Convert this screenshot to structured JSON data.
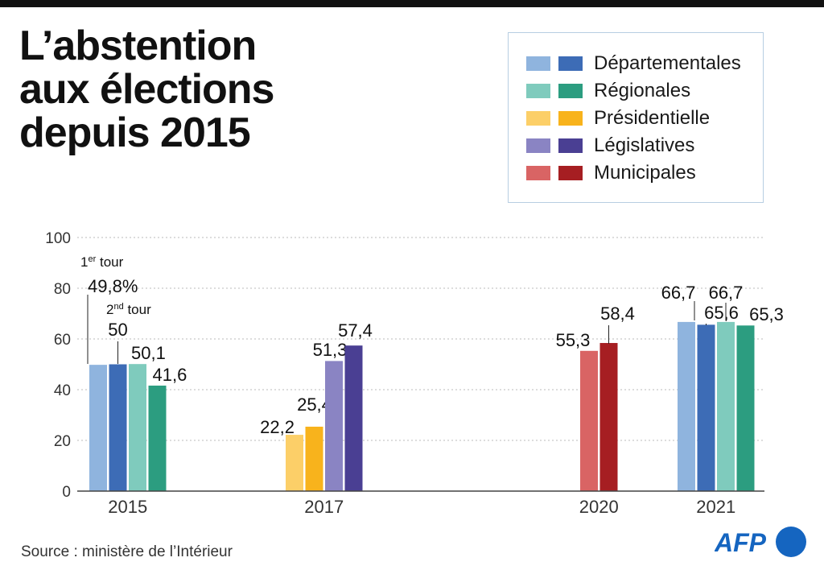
{
  "title_lines": [
    "L’abstention",
    "aux élections",
    "depuis 2015"
  ],
  "source": "Source : ministère de l’Intérieur",
  "logo_text": "AFP",
  "colors": {
    "departementales_t1": "#8fb4de",
    "departementales_t2": "#3d6cb6",
    "regionales_t1": "#7fcbbd",
    "regionales_t2": "#2c9d80",
    "presidentielle_t1": "#fccf68",
    "presidentielle_t2": "#f8b31c",
    "legislatives_t1": "#8a84c3",
    "legislatives_t2": "#4a3f93",
    "municipales_t1": "#d96464",
    "municipales_t2": "#a61e22",
    "logo": "#1565c0"
  },
  "legend": [
    {
      "label": "Départementales",
      "colors": [
        "#8fb4de",
        "#3d6cb6"
      ]
    },
    {
      "label": "Régionales",
      "colors": [
        "#7fcbbd",
        "#2c9d80"
      ]
    },
    {
      "label": "Présidentielle",
      "colors": [
        "#fccf68",
        "#f8b31c"
      ]
    },
    {
      "label": "Législatives",
      "colors": [
        "#8a84c3",
        "#4a3f93"
      ]
    },
    {
      "label": "Municipales",
      "colors": [
        "#d96464",
        "#a61e22"
      ]
    }
  ],
  "chart_data": {
    "type": "bar",
    "ylim": [
      0,
      100
    ],
    "yticks": [
      "0",
      "20",
      "40",
      "60",
      "80",
      "100"
    ],
    "grid": true,
    "legend_position": "top-right",
    "annotations": {
      "first_round": "1er tour",
      "second_round": "2nd tour"
    },
    "groups": [
      {
        "year": "2015",
        "bars": [
          {
            "series": "Départementales",
            "round": 1,
            "value": 49.8,
            "label": "49,8%",
            "color": "#8fb4de"
          },
          {
            "series": "Départementales",
            "round": 2,
            "value": 50,
            "label": "50",
            "color": "#3d6cb6"
          },
          {
            "series": "Régionales",
            "round": 1,
            "value": 50.1,
            "label": "50,1",
            "color": "#7fcbbd"
          },
          {
            "series": "Régionales",
            "round": 2,
            "value": 41.6,
            "label": "41,6",
            "color": "#2c9d80"
          }
        ]
      },
      {
        "year": "2017",
        "bars": [
          {
            "series": "Présidentielle",
            "round": 1,
            "value": 22.2,
            "label": "22,2",
            "color": "#fccf68"
          },
          {
            "series": "Présidentielle",
            "round": 2,
            "value": 25.4,
            "label": "25,4",
            "color": "#f8b31c"
          },
          {
            "series": "Législatives",
            "round": 1,
            "value": 51.3,
            "label": "51,3",
            "color": "#8a84c3"
          },
          {
            "series": "Législatives",
            "round": 2,
            "value": 57.4,
            "label": "57,4",
            "color": "#4a3f93"
          }
        ]
      },
      {
        "year": "2020",
        "bars": [
          {
            "series": "Municipales",
            "round": 1,
            "value": 55.3,
            "label": "55,3",
            "color": "#d96464"
          },
          {
            "series": "Municipales",
            "round": 2,
            "value": 58.4,
            "label": "58,4",
            "color": "#a61e22"
          }
        ]
      },
      {
        "year": "2021",
        "bars": [
          {
            "series": "Départementales",
            "round": 1,
            "value": 66.7,
            "label": "66,7",
            "color": "#8fb4de"
          },
          {
            "series": "Départementales",
            "round": 2,
            "value": 65.6,
            "label": "65,6",
            "color": "#3d6cb6"
          },
          {
            "series": "Régionales",
            "round": 1,
            "value": 66.7,
            "label": "66,7",
            "color": "#7fcbbd"
          },
          {
            "series": "Régionales",
            "round": 2,
            "value": 65.3,
            "label": "65,3",
            "color": "#2c9d80"
          }
        ]
      }
    ]
  }
}
